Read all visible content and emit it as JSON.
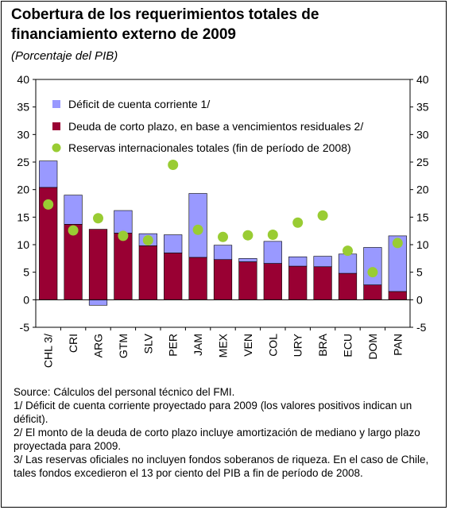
{
  "header": {
    "title_line1": "Cobertura de los requerimientos totales de",
    "title_line2": "financiamiento externo de 2009",
    "subtitle": "(Porcentaje del PIB)"
  },
  "chart_data": {
    "type": "bar",
    "stacked": true,
    "categories": [
      "CHL 3/",
      "CRI",
      "ARG",
      "GTM",
      "SLV",
      "PER",
      "JAM",
      "MEX",
      "VEN",
      "COL",
      "URY",
      "BRA",
      "ECU",
      "DOM",
      "PAN"
    ],
    "series": [
      {
        "name": "Déficit de cuenta corriente 1/",
        "type": "bar",
        "color": "#9999ff",
        "values": [
          4.8,
          5.3,
          -1.0,
          4.1,
          2.2,
          3.3,
          11.6,
          2.6,
          0.6,
          4.0,
          1.7,
          1.9,
          3.5,
          6.8,
          10.1
        ]
      },
      {
        "name": "Deuda de corto plazo, en base a vencimientos residuales 2/",
        "type": "bar",
        "color": "#990033",
        "values": [
          20.4,
          13.7,
          12.8,
          12.1,
          9.8,
          8.5,
          7.7,
          7.3,
          6.9,
          6.6,
          6.1,
          6.0,
          4.8,
          2.7,
          1.5
        ]
      },
      {
        "name": "Reservas internacionales totales (fin de período de 2008)",
        "type": "scatter",
        "color": "#99cc33",
        "values": [
          17.3,
          12.6,
          14.8,
          11.6,
          10.8,
          24.5,
          12.7,
          11.4,
          11.7,
          11.8,
          14.0,
          15.3,
          8.9,
          5.0,
          10.3
        ]
      }
    ],
    "y_axis": {
      "min": -5,
      "max": 40,
      "ticks": [
        "-5",
        "0",
        "5",
        "10",
        "15",
        "20",
        "25",
        "30",
        "35",
        "40"
      ],
      "secondary_ticks": [
        "-5",
        "0",
        "5",
        "10",
        "15",
        "20",
        "25",
        "30",
        "35",
        "40"
      ]
    },
    "legend_position": "top-left",
    "grid": false
  },
  "notes": {
    "source": "Source: Cálculos del personal técnico del FMI.",
    "note1": "1/ Déficit de cuenta corriente proyectado para 2009 (los valores positivos indican un déficit).",
    "note2": "2/ El monto de la deuda de corto plazo incluye amortización de mediano y largo plazo proyectada para 2009.",
    "note3": "3/ Las reservas oficiales no incluyen fondos soberanos de riqueza. En el caso de Chile, tales fondos excedieron el 13 por ciento del PIB a fin de período de 2008."
  }
}
